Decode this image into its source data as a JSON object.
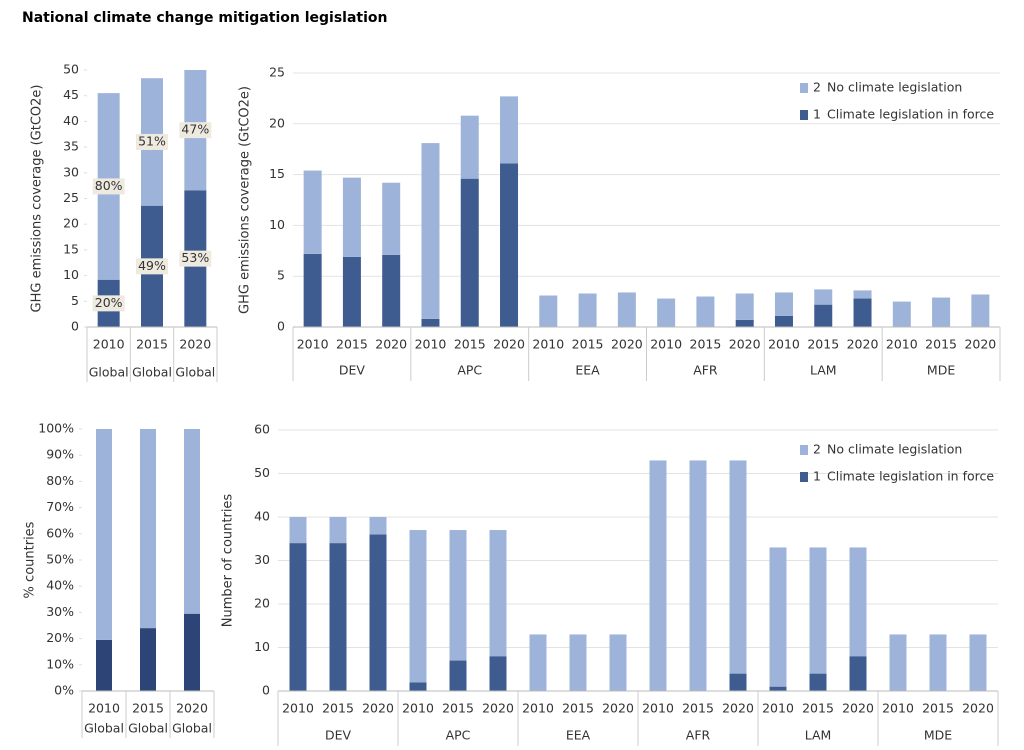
{
  "title": "National climate change mitigation legislation",
  "chart_data": [
    {
      "type": "bar",
      "stacked": true,
      "ylabel": "GHG emissions coverage (GtCO2e)",
      "categories": [
        "2010",
        "2015",
        "2020"
      ],
      "groups": [
        "Global",
        "Global",
        "Global"
      ],
      "ylim": [
        0,
        50
      ],
      "yticks": [
        0,
        5,
        10,
        15,
        20,
        25,
        30,
        35,
        40,
        45,
        50
      ],
      "grid": false,
      "series": [
        {
          "color": "#3e5c8f",
          "values": [
            9.2,
            23.6,
            26.6
          ],
          "share_labels": [
            "20%",
            "49%",
            "53%"
          ]
        },
        {
          "color": "#9db3d9",
          "values": [
            36.3,
            24.8,
            23.4
          ],
          "share_labels": [
            "80%",
            "51%",
            "47%"
          ]
        }
      ]
    },
    {
      "type": "bar",
      "stacked": true,
      "ylabel": "GHG emissions coverage (GtCO2e)",
      "categories": [
        "2010",
        "2015",
        "2020",
        "2010",
        "2015",
        "2020",
        "2010",
        "2015",
        "2020",
        "2010",
        "2015",
        "2020",
        "2010",
        "2015",
        "2020",
        "2010",
        "2015",
        "2020"
      ],
      "groups": [
        "DEV",
        "APC",
        "EEA",
        "AFR",
        "LAM",
        "MDE"
      ],
      "ylim": [
        0,
        25
      ],
      "yticks": [
        0,
        5,
        10,
        15,
        20,
        25
      ],
      "grid": true,
      "legend": "upper right",
      "series": [
        {
          "name": "Climate legislation in force",
          "key": "1",
          "color": "#3e5c8f",
          "values": [
            7.2,
            6.9,
            7.1,
            0.8,
            14.6,
            16.1,
            0,
            0,
            0,
            0,
            0,
            0.7,
            1.1,
            2.2,
            2.8,
            0,
            0,
            0
          ]
        },
        {
          "name": "No climate legislation",
          "key": "2",
          "color": "#9db3d9",
          "values": [
            8.2,
            7.8,
            7.1,
            17.3,
            6.2,
            6.6,
            3.1,
            3.3,
            3.4,
            2.8,
            3.0,
            2.6,
            2.3,
            1.5,
            0.8,
            2.5,
            2.9,
            3.2
          ]
        }
      ]
    },
    {
      "type": "bar",
      "stacked": true,
      "ylabel": "% countries",
      "categories": [
        "2010",
        "2015",
        "2020"
      ],
      "groups": [
        "Global",
        "Global",
        "Global"
      ],
      "ylim": [
        0,
        100
      ],
      "yticks": [
        {
          "value": 0,
          "label": "0%"
        },
        {
          "value": 10,
          "label": "10%"
        },
        {
          "value": 20,
          "label": "20%"
        },
        {
          "value": 30,
          "label": "30%"
        },
        {
          "value": 40,
          "label": "40%"
        },
        {
          "value": 50,
          "label": "50%"
        },
        {
          "value": 60,
          "label": "60%"
        },
        {
          "value": 70,
          "label": "70%"
        },
        {
          "value": 80,
          "label": "80%"
        },
        {
          "value": 90,
          "label": "90%"
        },
        {
          "value": 100,
          "label": "100%"
        }
      ],
      "grid": false,
      "series": [
        {
          "color": "#2c4576",
          "values": [
            19.5,
            24,
            29.5
          ]
        },
        {
          "color": "#9db3d9",
          "values": [
            80.5,
            76,
            70.5
          ]
        }
      ]
    },
    {
      "type": "bar",
      "stacked": true,
      "ylabel": "Number of countries",
      "categories": [
        "2010",
        "2015",
        "2020",
        "2010",
        "2015",
        "2020",
        "2010",
        "2015",
        "2020",
        "2010",
        "2015",
        "2020",
        "2010",
        "2015",
        "2020",
        "2010",
        "2015",
        "2020"
      ],
      "groups": [
        "DEV",
        "APC",
        "EEA",
        "AFR",
        "LAM",
        "MDE"
      ],
      "ylim": [
        0,
        60
      ],
      "yticks": [
        0,
        10,
        20,
        30,
        40,
        50,
        60
      ],
      "grid": true,
      "legend": "upper right",
      "series": [
        {
          "name": "Climate legislation in force",
          "key": "1",
          "color": "#3e5c8f",
          "values": [
            34,
            34,
            36,
            2,
            7,
            8,
            0,
            0,
            0,
            0,
            0,
            4,
            1,
            4,
            8,
            0,
            0,
            0
          ]
        },
        {
          "name": "No climate legislation",
          "key": "2",
          "color": "#9db3d9",
          "values": [
            6,
            6,
            4,
            35,
            30,
            29,
            13,
            13,
            13,
            53,
            53,
            49,
            32,
            29,
            25,
            13,
            13,
            13
          ]
        }
      ]
    }
  ]
}
